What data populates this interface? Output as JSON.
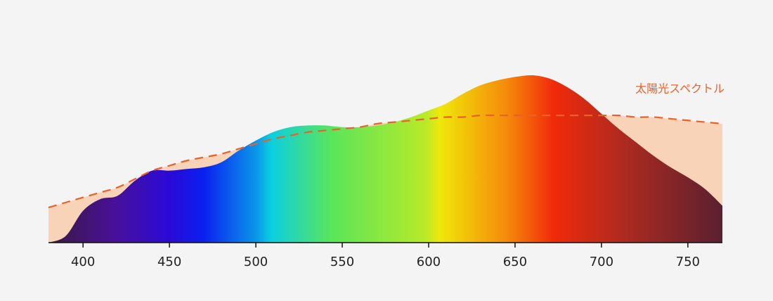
{
  "chart_data": {
    "type": "area",
    "x": [
      380,
      390,
      400,
      410,
      420,
      430,
      440,
      450,
      460,
      470,
      480,
      490,
      500,
      510,
      520,
      530,
      540,
      550,
      560,
      570,
      580,
      590,
      600,
      610,
      620,
      630,
      640,
      650,
      660,
      670,
      680,
      690,
      700,
      710,
      720,
      730,
      740,
      750,
      760,
      770
    ],
    "series": [
      {
        "color": "spectrum",
        "values": [
          0,
          4,
          19,
          26,
          28,
          37,
          43,
          43,
          44,
          45,
          48,
          55,
          61,
          66,
          69,
          70,
          70,
          69,
          69,
          70,
          72,
          75,
          79,
          83,
          89,
          94,
          97,
          99,
          100,
          98,
          93,
          86,
          77,
          68,
          60,
          52,
          45,
          39,
          32,
          22
        ]
      },
      {
        "name": "太陽光スペクトル",
        "color": "#e8622a",
        "fill": "#f9d3b8",
        "dashed": true,
        "values": [
          21,
          24,
          27,
          30,
          33,
          38,
          43,
          46,
          49,
          51,
          53,
          56,
          59,
          62,
          64,
          66,
          67,
          68,
          69,
          71,
          72,
          73,
          74,
          75,
          75,
          76,
          76,
          76,
          76,
          76,
          76,
          76,
          76,
          76,
          75,
          75,
          74,
          73,
          72,
          71
        ]
      }
    ],
    "xlim": [
      380,
      770
    ],
    "ylim": [
      0,
      100
    ],
    "xticks": [
      400,
      450,
      500,
      550,
      600,
      650,
      700,
      750
    ]
  }
}
